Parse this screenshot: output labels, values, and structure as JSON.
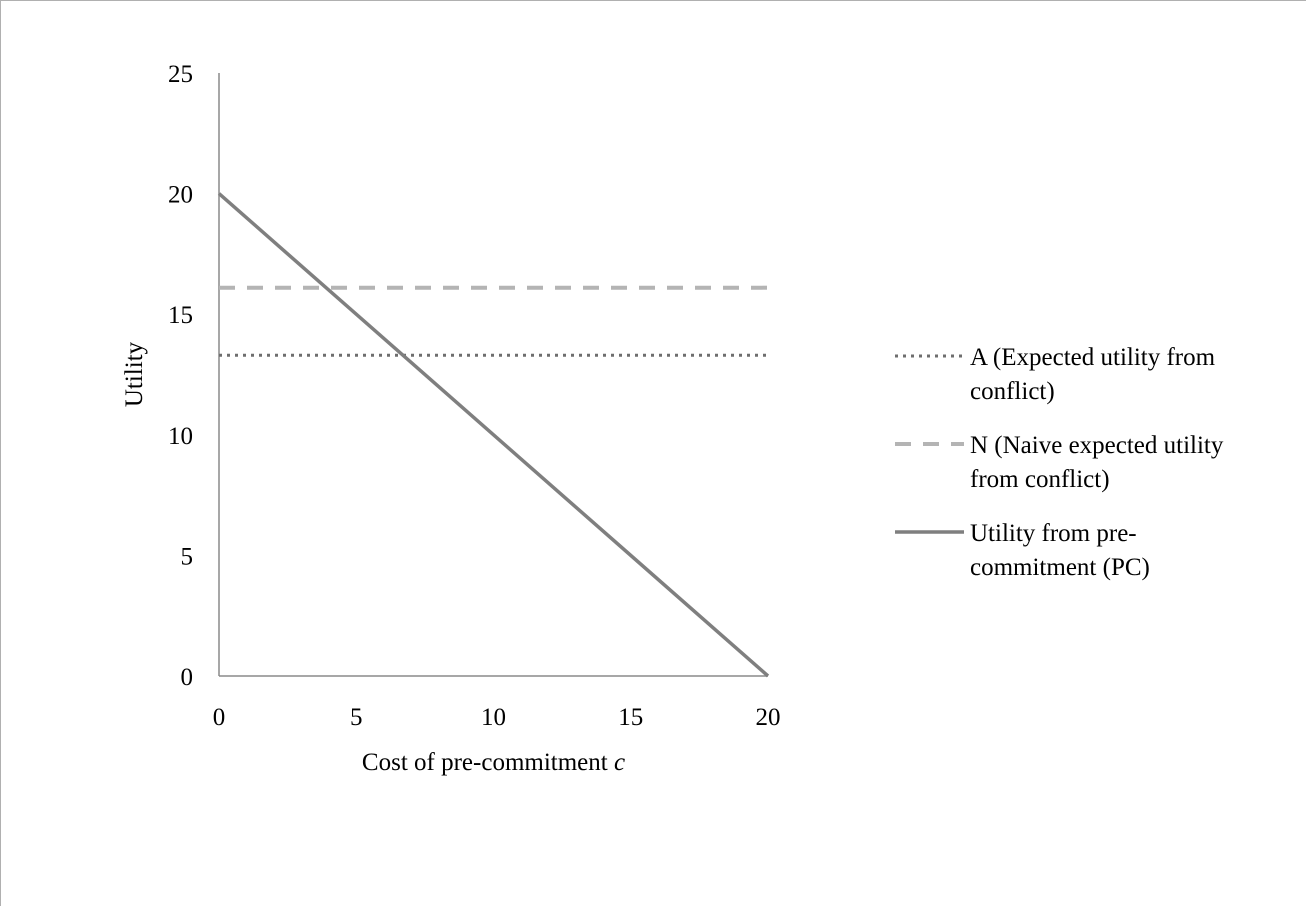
{
  "chart_data": {
    "type": "line",
    "title": "",
    "xlabel": "Cost of pre-commitment",
    "xlabel_var": "c",
    "ylabel": "Utility",
    "xlim": [
      0,
      20
    ],
    "ylim": [
      0,
      25
    ],
    "xticks": [
      "0",
      "5",
      "10",
      "15",
      "20"
    ],
    "yticks": [
      "0",
      "5",
      "10",
      "15",
      "20",
      "25"
    ],
    "grid": false,
    "legend_position": "right",
    "series": [
      {
        "name": "A (Expected utility from conflict)",
        "legend_lines": [
          "A (Expected utility from",
          "conflict)"
        ],
        "style": "dotted",
        "color": "#6e6e6e",
        "x": [
          0,
          20
        ],
        "y": [
          13.3,
          13.3
        ]
      },
      {
        "name": "N (Naive expected utility from conflict)",
        "legend_lines": [
          "N (Naive expected utility",
          "from conflict)"
        ],
        "style": "dashed",
        "color": "#b4b4b4",
        "x": [
          0,
          20
        ],
        "y": [
          16.1,
          16.1
        ]
      },
      {
        "name": "Utility from pre-commitment (PC)",
        "legend_lines": [
          "Utility from pre-",
          "commitment (PC)"
        ],
        "style": "solid",
        "color": "#7f7f7f",
        "x": [
          0,
          20
        ],
        "y": [
          20,
          0
        ]
      }
    ]
  }
}
